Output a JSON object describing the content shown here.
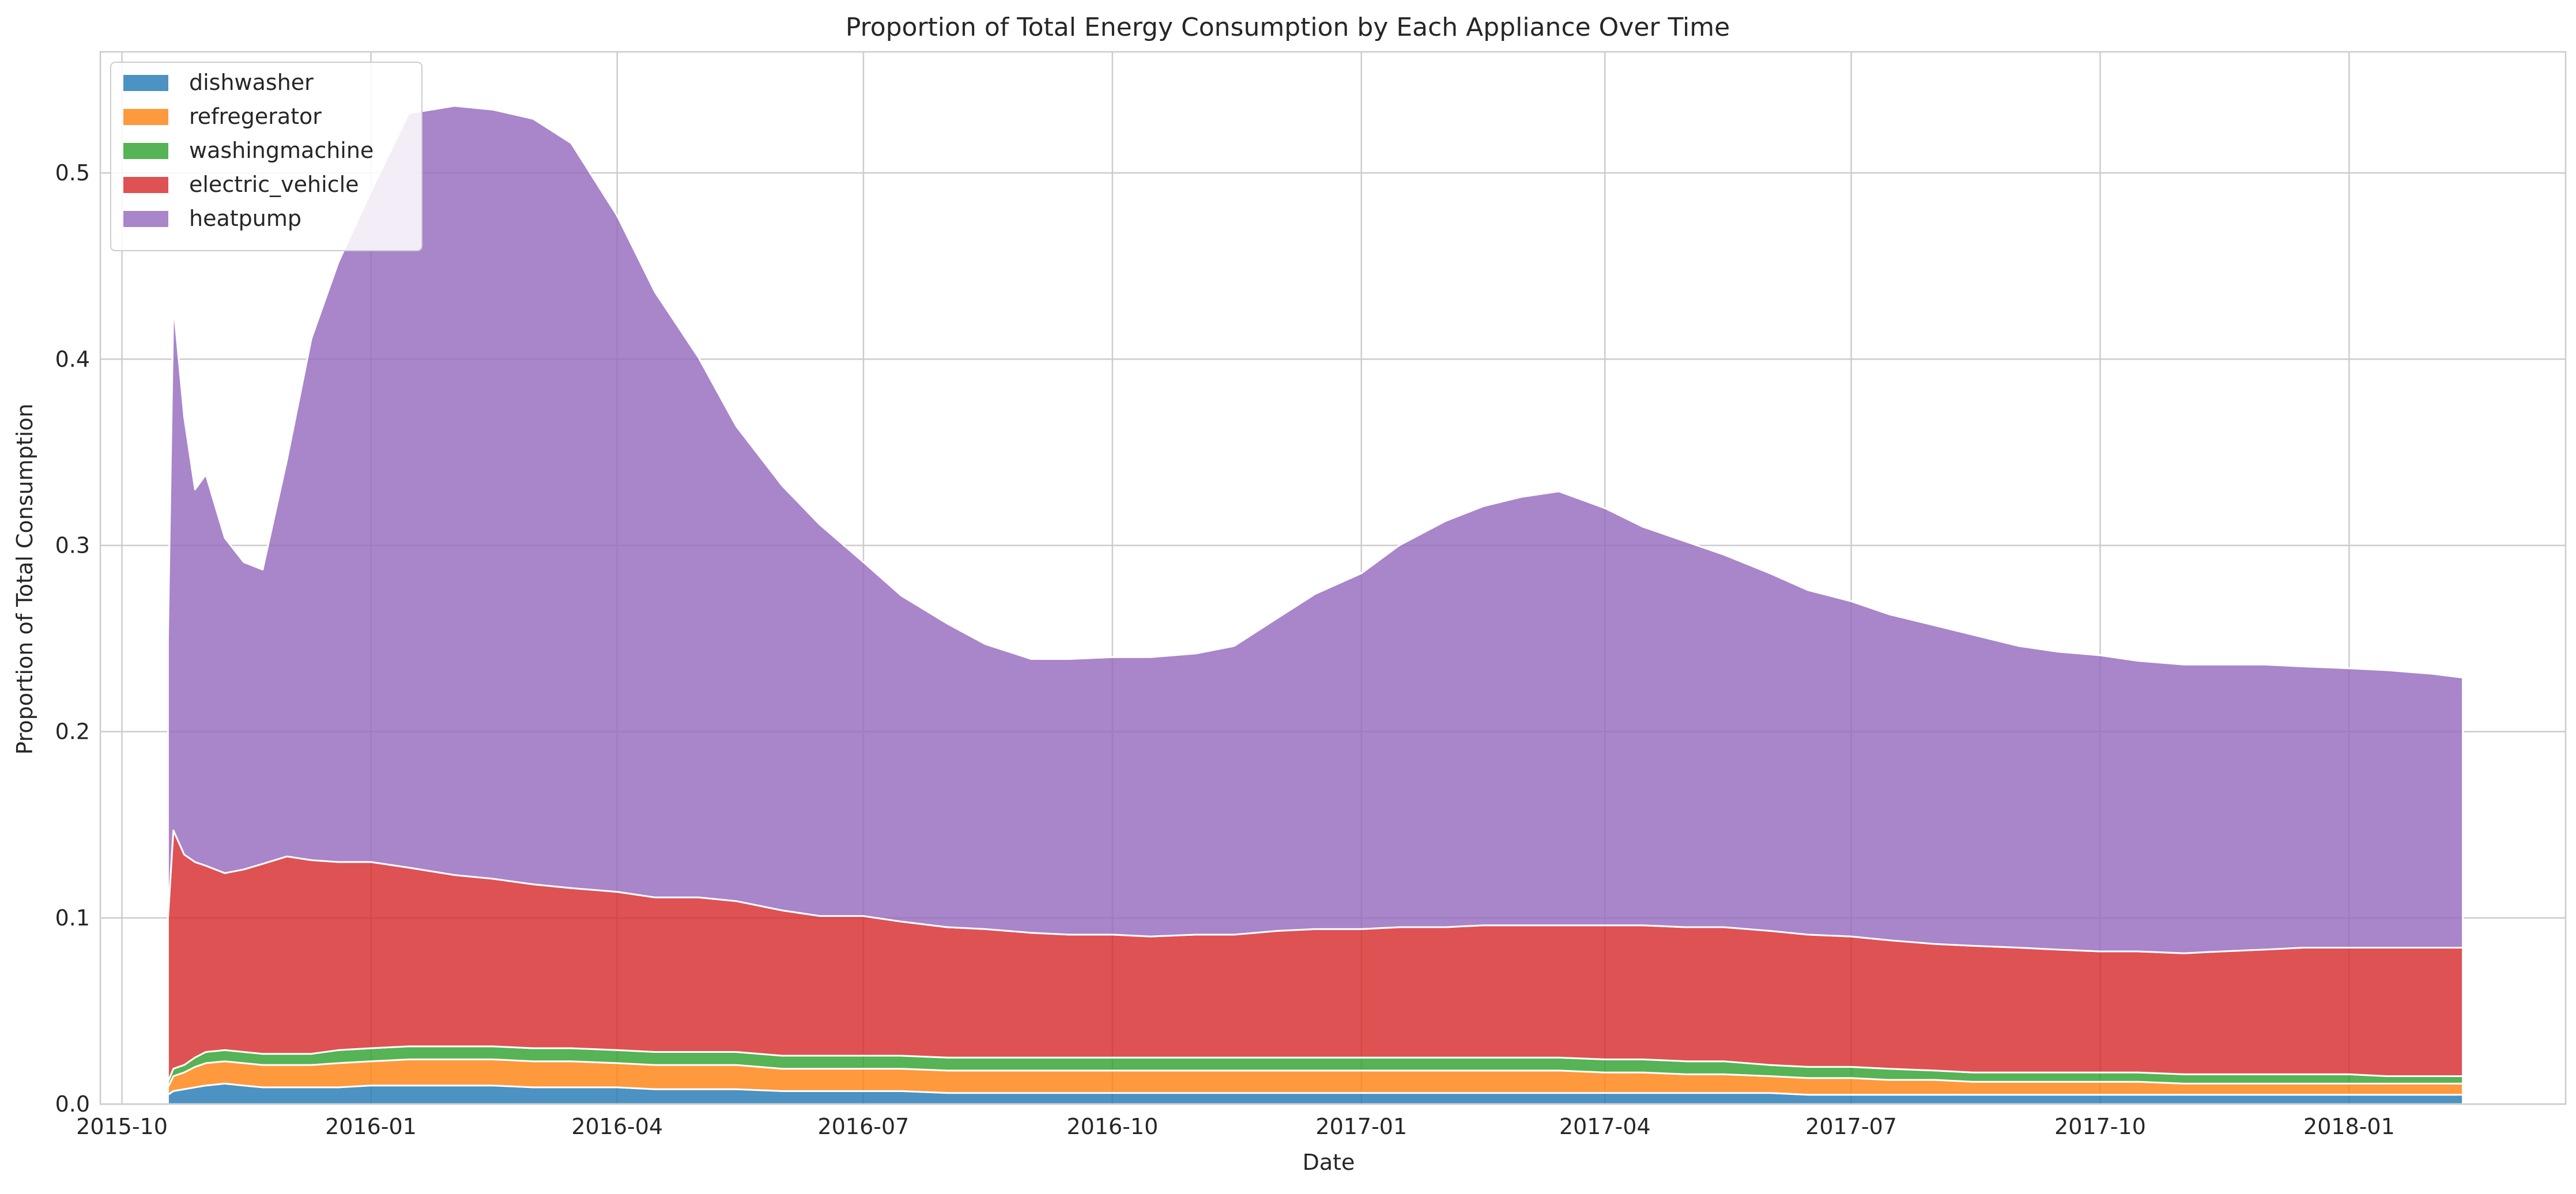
{
  "chart_data": {
    "type": "area",
    "stacked": true,
    "title": "Proportion of Total Energy Consumption by Each Appliance Over Time",
    "xlabel": "Date",
    "ylabel": "Proportion of Total Consumption",
    "xlim": [
      "2015-09-23",
      "2018-03-22"
    ],
    "ylim": [
      0,
      0.565
    ],
    "x_ticks": [
      "2015-10",
      "2016-01",
      "2016-04",
      "2016-07",
      "2016-10",
      "2017-01",
      "2017-04",
      "2017-07",
      "2017-10",
      "2018-01"
    ],
    "y_ticks": [
      0.0,
      0.1,
      0.2,
      0.3,
      0.4,
      0.5
    ],
    "grid": true,
    "legend_position": "upper left",
    "series_order": "bottom-to-top",
    "x": [
      "2015-10-18",
      "2015-10-20",
      "2015-10-24",
      "2015-10-28",
      "2015-11-01",
      "2015-11-08",
      "2015-11-15",
      "2015-11-22",
      "2015-12-01",
      "2015-12-10",
      "2015-12-20",
      "2016-01-01",
      "2016-01-15",
      "2016-02-01",
      "2016-02-15",
      "2016-03-01",
      "2016-03-15",
      "2016-04-01",
      "2016-04-15",
      "2016-05-01",
      "2016-05-15",
      "2016-06-01",
      "2016-06-15",
      "2016-07-01",
      "2016-07-15",
      "2016-08-01",
      "2016-08-15",
      "2016-09-01",
      "2016-09-15",
      "2016-10-01",
      "2016-10-15",
      "2016-11-01",
      "2016-11-15",
      "2016-12-01",
      "2016-12-15",
      "2017-01-01",
      "2017-01-15",
      "2017-02-01",
      "2017-02-15",
      "2017-03-01",
      "2017-03-15",
      "2017-04-01",
      "2017-04-15",
      "2017-05-01",
      "2017-05-15",
      "2017-06-01",
      "2017-06-15",
      "2017-07-01",
      "2017-07-15",
      "2017-08-01",
      "2017-08-15",
      "2017-09-01",
      "2017-09-15",
      "2017-10-01",
      "2017-10-15",
      "2017-11-01",
      "2017-11-15",
      "2017-12-01",
      "2017-12-15",
      "2018-01-01",
      "2018-01-15",
      "2018-02-01",
      "2018-02-12"
    ],
    "series": [
      {
        "name": "dishwasher",
        "color": "#1f77b4",
        "values": [
          0.005,
          0.007,
          0.008,
          0.009,
          0.01,
          0.011,
          0.01,
          0.009,
          0.009,
          0.009,
          0.009,
          0.01,
          0.01,
          0.01,
          0.01,
          0.009,
          0.009,
          0.009,
          0.008,
          0.008,
          0.008,
          0.007,
          0.007,
          0.007,
          0.007,
          0.006,
          0.006,
          0.006,
          0.006,
          0.006,
          0.006,
          0.006,
          0.006,
          0.006,
          0.006,
          0.006,
          0.006,
          0.006,
          0.006,
          0.006,
          0.006,
          0.006,
          0.006,
          0.006,
          0.006,
          0.006,
          0.005,
          0.005,
          0.005,
          0.005,
          0.005,
          0.005,
          0.005,
          0.005,
          0.005,
          0.005,
          0.005,
          0.005,
          0.005,
          0.005,
          0.005,
          0.005,
          0.005
        ]
      },
      {
        "name": "refregerator",
        "color": "#ff7f0e",
        "values": [
          0.004,
          0.008,
          0.009,
          0.011,
          0.012,
          0.012,
          0.012,
          0.012,
          0.012,
          0.012,
          0.013,
          0.013,
          0.014,
          0.014,
          0.014,
          0.014,
          0.014,
          0.013,
          0.013,
          0.013,
          0.013,
          0.012,
          0.012,
          0.012,
          0.012,
          0.012,
          0.012,
          0.012,
          0.012,
          0.012,
          0.012,
          0.012,
          0.012,
          0.012,
          0.012,
          0.012,
          0.012,
          0.012,
          0.012,
          0.012,
          0.012,
          0.011,
          0.011,
          0.01,
          0.01,
          0.009,
          0.009,
          0.009,
          0.008,
          0.008,
          0.007,
          0.007,
          0.007,
          0.007,
          0.007,
          0.006,
          0.006,
          0.006,
          0.006,
          0.006,
          0.006,
          0.006,
          0.006
        ]
      },
      {
        "name": "washingmachine",
        "color": "#2ca02c",
        "values": [
          0.003,
          0.004,
          0.004,
          0.005,
          0.006,
          0.006,
          0.006,
          0.006,
          0.006,
          0.006,
          0.007,
          0.007,
          0.007,
          0.007,
          0.007,
          0.007,
          0.007,
          0.007,
          0.007,
          0.007,
          0.007,
          0.007,
          0.007,
          0.007,
          0.007,
          0.007,
          0.007,
          0.007,
          0.007,
          0.007,
          0.007,
          0.007,
          0.007,
          0.007,
          0.007,
          0.007,
          0.007,
          0.007,
          0.007,
          0.007,
          0.007,
          0.007,
          0.007,
          0.007,
          0.007,
          0.006,
          0.006,
          0.006,
          0.006,
          0.005,
          0.005,
          0.005,
          0.005,
          0.005,
          0.005,
          0.005,
          0.005,
          0.005,
          0.005,
          0.005,
          0.004,
          0.004,
          0.004
        ]
      },
      {
        "name": "electric_vehicle",
        "color": "#d62728",
        "values": [
          0.088,
          0.128,
          0.113,
          0.105,
          0.1,
          0.095,
          0.098,
          0.102,
          0.106,
          0.104,
          0.101,
          0.1,
          0.096,
          0.092,
          0.09,
          0.088,
          0.086,
          0.085,
          0.083,
          0.083,
          0.081,
          0.078,
          0.075,
          0.075,
          0.072,
          0.07,
          0.069,
          0.067,
          0.066,
          0.066,
          0.065,
          0.066,
          0.066,
          0.068,
          0.069,
          0.069,
          0.07,
          0.07,
          0.071,
          0.071,
          0.071,
          0.072,
          0.072,
          0.072,
          0.072,
          0.072,
          0.071,
          0.07,
          0.069,
          0.068,
          0.068,
          0.067,
          0.066,
          0.065,
          0.065,
          0.065,
          0.066,
          0.067,
          0.068,
          0.068,
          0.069,
          0.069,
          0.069
        ]
      },
      {
        "name": "heatpump",
        "color": "#9467bd",
        "values": [
          0.15,
          0.283,
          0.235,
          0.2,
          0.21,
          0.18,
          0.165,
          0.158,
          0.213,
          0.28,
          0.322,
          0.36,
          0.405,
          0.413,
          0.413,
          0.411,
          0.4,
          0.363,
          0.325,
          0.29,
          0.255,
          0.228,
          0.21,
          0.19,
          0.175,
          0.163,
          0.153,
          0.147,
          0.148,
          0.149,
          0.15,
          0.151,
          0.155,
          0.168,
          0.18,
          0.191,
          0.205,
          0.218,
          0.225,
          0.23,
          0.233,
          0.224,
          0.214,
          0.207,
          0.2,
          0.192,
          0.185,
          0.18,
          0.175,
          0.171,
          0.167,
          0.162,
          0.16,
          0.159,
          0.156,
          0.155,
          0.154,
          0.153,
          0.151,
          0.15,
          0.149,
          0.147,
          0.145
        ]
      }
    ]
  }
}
